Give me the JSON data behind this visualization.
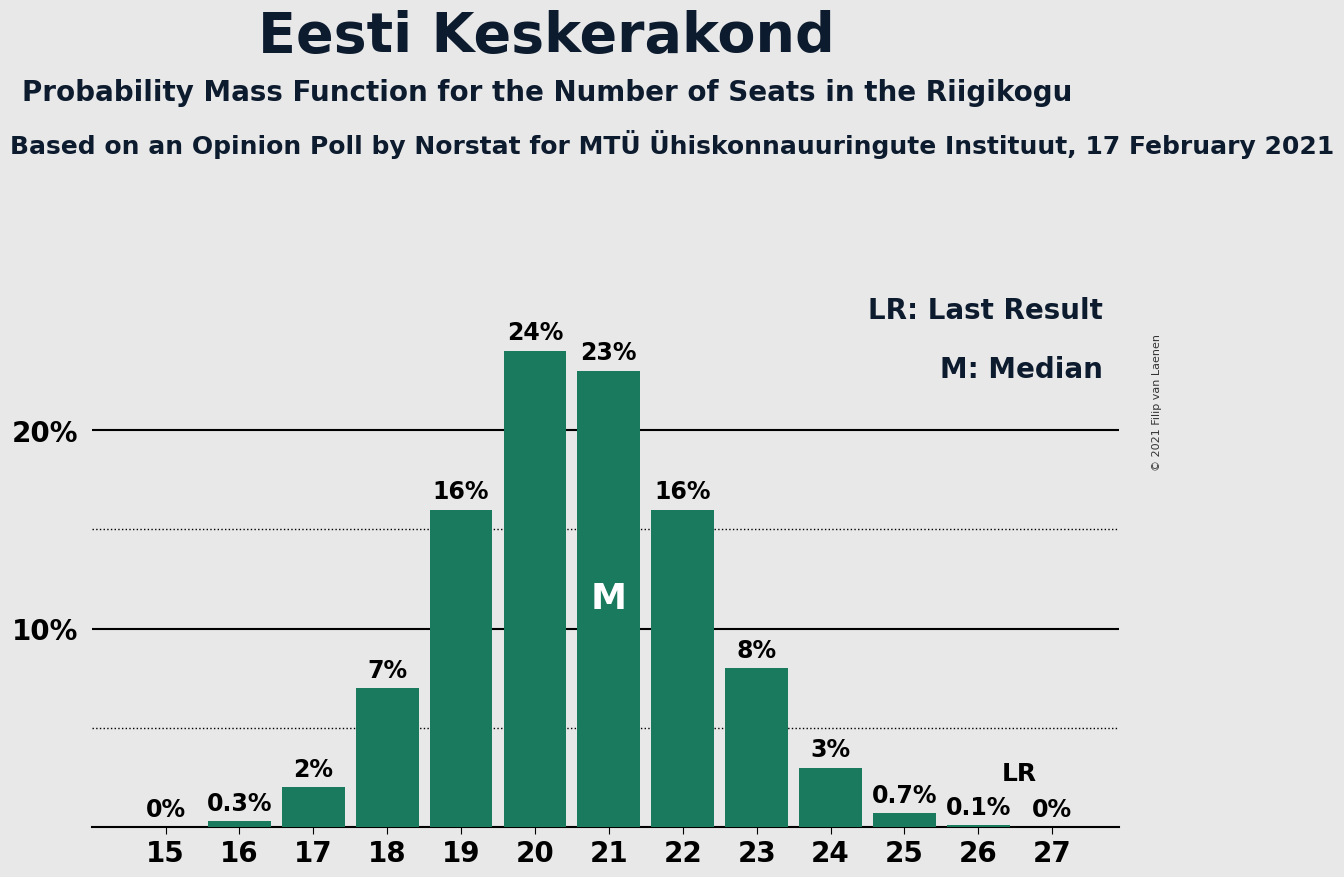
{
  "title": "Eesti Keskerakond",
  "subtitle": "Probability Mass Function for the Number of Seats in the Riigikogu",
  "source_line": "Based on an Opinion Poll by Norstat for MTÜ Ühiskonnauuringute Instituut, 17 February 2021",
  "copyright": "© 2021 Filip van Laenen",
  "seats": [
    15,
    16,
    17,
    18,
    19,
    20,
    21,
    22,
    23,
    24,
    25,
    26,
    27
  ],
  "probabilities": [
    0.0,
    0.3,
    2.0,
    7.0,
    16.0,
    24.0,
    23.0,
    16.0,
    8.0,
    3.0,
    0.7,
    0.1,
    0.0
  ],
  "bar_color": "#1a7a5e",
  "background_color": "#e8e8e8",
  "median_seat": 21,
  "lr_seat": 26,
  "solid_gridlines": [
    10.0,
    20.0
  ],
  "dotted_gridlines": [
    5.0,
    15.0
  ],
  "legend_lr": "LR: Last Result",
  "legend_m": "M: Median",
  "title_fontsize": 40,
  "subtitle_fontsize": 20,
  "source_fontsize": 18,
  "bar_label_fontsize": 17,
  "axis_tick_fontsize": 20,
  "legend_fontsize": 20,
  "ylim": [
    0,
    27
  ]
}
